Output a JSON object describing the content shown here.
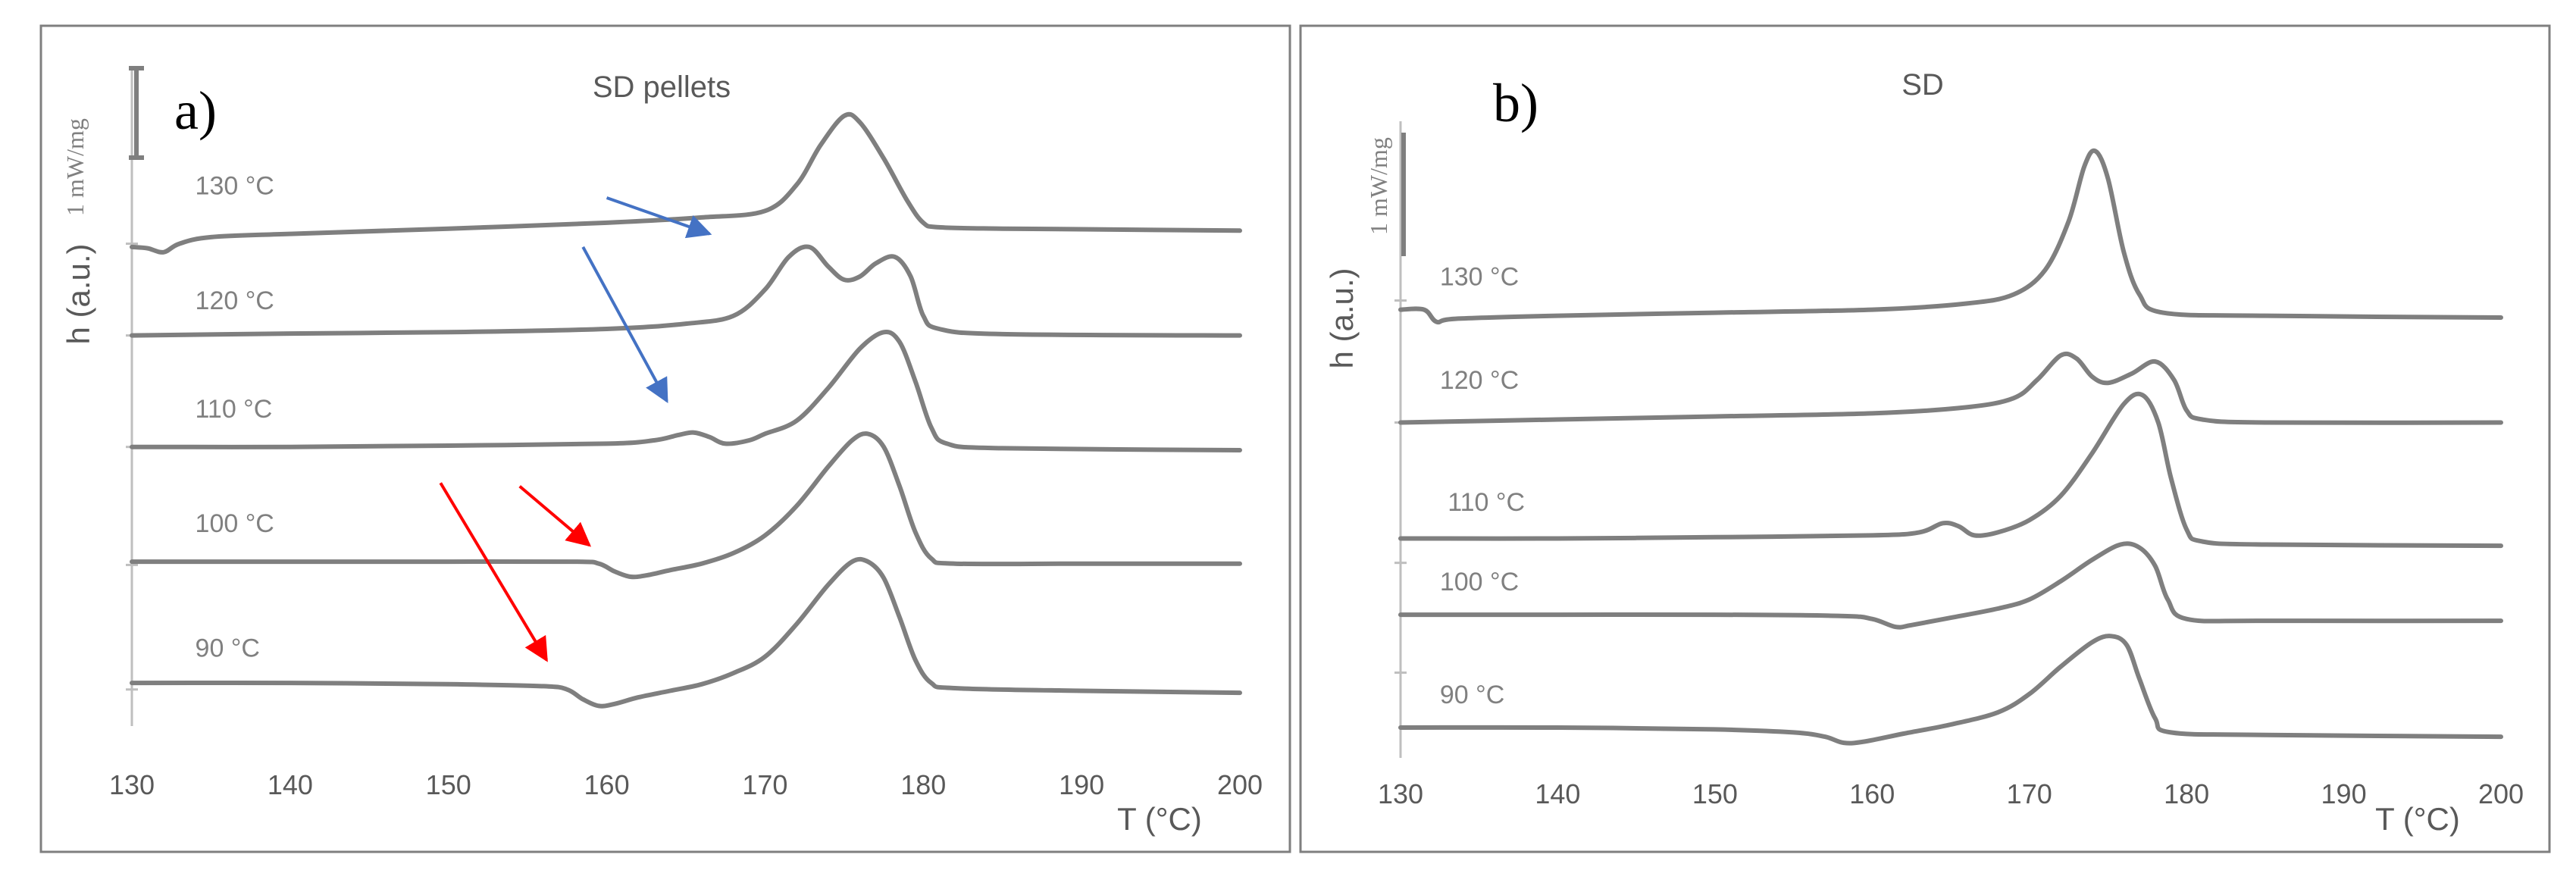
{
  "chart_data": [
    {
      "type": "line",
      "panel_label": "a)",
      "title": "SD pellets",
      "xlabel": "T (°C)",
      "ylabel": "h (a.u.)",
      "scale_bar_label": "1 mW/mg",
      "xlim": [
        130,
        200
      ],
      "xticks": [
        130,
        140,
        150,
        160,
        170,
        180,
        190,
        200
      ],
      "ylim": [
        0,
        10
      ],
      "series": [
        {
          "name": "130 °C",
          "label_x": 134,
          "label_y": 8.05,
          "points": [
            [
              130,
              7.25
            ],
            [
              131,
              7.23
            ],
            [
              132,
              7.17
            ],
            [
              133,
              7.3
            ],
            [
              135,
              7.4
            ],
            [
              140,
              7.45
            ],
            [
              150,
              7.53
            ],
            [
              160,
              7.62
            ],
            [
              166,
              7.7
            ],
            [
              170,
              7.8
            ],
            [
              172,
              8.2
            ],
            [
              173.5,
              8.8
            ],
            [
              175,
              9.25
            ],
            [
              176,
              9.15
            ],
            [
              177.5,
              8.6
            ],
            [
              179,
              7.95
            ],
            [
              180,
              7.62
            ],
            [
              181,
              7.55
            ],
            [
              185,
              7.53
            ],
            [
              190,
              7.52
            ],
            [
              200,
              7.5
            ]
          ]
        },
        {
          "name": "120 °C",
          "label_x": 134,
          "label_y": 6.3,
          "points": [
            [
              130,
              5.9
            ],
            [
              140,
              5.93
            ],
            [
              150,
              5.95
            ],
            [
              160,
              6.0
            ],
            [
              165,
              6.08
            ],
            [
              168,
              6.2
            ],
            [
              170,
              6.6
            ],
            [
              171.5,
              7.1
            ],
            [
              172.8,
              7.25
            ],
            [
              174,
              6.95
            ],
            [
              175,
              6.75
            ],
            [
              176,
              6.8
            ],
            [
              177,
              7.0
            ],
            [
              178.2,
              7.1
            ],
            [
              179.2,
              6.8
            ],
            [
              180,
              6.2
            ],
            [
              181,
              6.0
            ],
            [
              185,
              5.92
            ],
            [
              200,
              5.9
            ]
          ]
        },
        {
          "name": "110 °C",
          "label_x": 134,
          "label_y": 4.65,
          "points": [
            [
              130,
              4.2
            ],
            [
              140,
              4.2
            ],
            [
              150,
              4.22
            ],
            [
              160,
              4.25
            ],
            [
              163,
              4.3
            ],
            [
              164.5,
              4.38
            ],
            [
              165.5,
              4.42
            ],
            [
              166.5,
              4.35
            ],
            [
              167.5,
              4.25
            ],
            [
              169,
              4.3
            ],
            [
              170,
              4.4
            ],
            [
              172,
              4.6
            ],
            [
              174,
              5.1
            ],
            [
              176,
              5.7
            ],
            [
              177.5,
              5.95
            ],
            [
              178.5,
              5.8
            ],
            [
              179.5,
              5.2
            ],
            [
              180.5,
              4.5
            ],
            [
              181.5,
              4.25
            ],
            [
              185,
              4.18
            ],
            [
              200,
              4.15
            ]
          ]
        },
        {
          "name": "100 °C",
          "label_x": 134,
          "label_y": 2.9,
          "points": [
            [
              130,
              2.45
            ],
            [
              140,
              2.45
            ],
            [
              150,
              2.45
            ],
            [
              158,
              2.45
            ],
            [
              159.5,
              2.42
            ],
            [
              160.5,
              2.3
            ],
            [
              161.5,
              2.22
            ],
            [
              162.5,
              2.24
            ],
            [
              164,
              2.32
            ],
            [
              166,
              2.42
            ],
            [
              168,
              2.58
            ],
            [
              170,
              2.85
            ],
            [
              172,
              3.3
            ],
            [
              174,
              3.9
            ],
            [
              175.5,
              4.3
            ],
            [
              176.5,
              4.4
            ],
            [
              177.5,
              4.2
            ],
            [
              178.5,
              3.6
            ],
            [
              179.5,
              2.9
            ],
            [
              180.5,
              2.5
            ],
            [
              182,
              2.42
            ],
            [
              190,
              2.42
            ],
            [
              200,
              2.42
            ]
          ]
        },
        {
          "name": "90 °C",
          "label_x": 134,
          "label_y": 1.0,
          "points": [
            [
              130,
              0.6
            ],
            [
              140,
              0.6
            ],
            [
              150,
              0.58
            ],
            [
              156,
              0.55
            ],
            [
              157.5,
              0.5
            ],
            [
              158.5,
              0.35
            ],
            [
              159.5,
              0.25
            ],
            [
              160.5,
              0.28
            ],
            [
              162,
              0.38
            ],
            [
              164,
              0.48
            ],
            [
              166,
              0.58
            ],
            [
              168,
              0.75
            ],
            [
              170,
              1.0
            ],
            [
              172,
              1.5
            ],
            [
              174,
              2.1
            ],
            [
              175.5,
              2.45
            ],
            [
              176.5,
              2.45
            ],
            [
              177.5,
              2.2
            ],
            [
              178.5,
              1.6
            ],
            [
              179.5,
              0.95
            ],
            [
              180.5,
              0.6
            ],
            [
              182,
              0.52
            ],
            [
              190,
              0.48
            ],
            [
              200,
              0.45
            ]
          ]
        }
      ],
      "arrows": [
        {
          "color": "#4472c4",
          "from": [
            160,
            8.0
          ],
          "to": [
            166.5,
            7.45
          ]
        },
        {
          "color": "#4472c4",
          "from": [
            158.5,
            7.25
          ],
          "to": [
            163.8,
            4.9
          ]
        },
        {
          "color": "#ff0000",
          "from": [
            154.5,
            3.6
          ],
          "to": [
            158.9,
            2.7
          ]
        },
        {
          "color": "#ff0000",
          "from": [
            149.5,
            3.65
          ],
          "to": [
            156.2,
            0.95
          ]
        }
      ]
    },
    {
      "type": "line",
      "panel_label": "b)",
      "title": "SD",
      "xlabel": "T (°C)",
      "ylabel": "h (a.u.)",
      "scale_bar_label": "1 mW/mg",
      "xlim": [
        130,
        200
      ],
      "xticks": [
        130,
        140,
        150,
        160,
        170,
        180,
        190,
        200
      ],
      "ylim": [
        0,
        10
      ],
      "series": [
        {
          "name": "130 °C",
          "label_x": 132.5,
          "label_y": 7.25,
          "points": [
            [
              130,
              6.85
            ],
            [
              131.5,
              6.85
            ],
            [
              132.3,
              6.65
            ],
            [
              133.5,
              6.7
            ],
            [
              140,
              6.75
            ],
            [
              150,
              6.8
            ],
            [
              160,
              6.85
            ],
            [
              166,
              6.95
            ],
            [
              169,
              7.1
            ],
            [
              171,
              7.5
            ],
            [
              172.5,
              8.3
            ],
            [
              173.5,
              9.2
            ],
            [
              174.2,
              9.45
            ],
            [
              175,
              9.0
            ],
            [
              176,
              7.8
            ],
            [
              177,
              7.1
            ],
            [
              178.5,
              6.8
            ],
            [
              185,
              6.75
            ],
            [
              200,
              6.72
            ]
          ]
        },
        {
          "name": "120 °C",
          "label_x": 132.5,
          "label_y": 5.55,
          "points": [
            [
              130,
              5.0
            ],
            [
              140,
              5.05
            ],
            [
              150,
              5.1
            ],
            [
              160,
              5.15
            ],
            [
              166,
              5.25
            ],
            [
              169,
              5.4
            ],
            [
              170.5,
              5.7
            ],
            [
              172,
              6.1
            ],
            [
              173,
              6.05
            ],
            [
              174,
              5.75
            ],
            [
              175,
              5.65
            ],
            [
              176.5,
              5.8
            ],
            [
              178,
              6.0
            ],
            [
              179.2,
              5.7
            ],
            [
              180,
              5.2
            ],
            [
              181,
              5.05
            ],
            [
              185,
              5.0
            ],
            [
              200,
              5.0
            ]
          ]
        },
        {
          "name": "110 °C",
          "label_x": 133,
          "label_y": 3.55,
          "points": [
            [
              130,
              3.1
            ],
            [
              140,
              3.1
            ],
            [
              150,
              3.12
            ],
            [
              160,
              3.15
            ],
            [
              163,
              3.2
            ],
            [
              164.5,
              3.35
            ],
            [
              165.5,
              3.3
            ],
            [
              166.5,
              3.15
            ],
            [
              168,
              3.2
            ],
            [
              170,
              3.4
            ],
            [
              172,
              3.8
            ],
            [
              174,
              4.5
            ],
            [
              176,
              5.3
            ],
            [
              177.2,
              5.45
            ],
            [
              178.2,
              5.0
            ],
            [
              179,
              4.1
            ],
            [
              180,
              3.25
            ],
            [
              181,
              3.05
            ],
            [
              185,
              3.0
            ],
            [
              200,
              2.98
            ]
          ]
        },
        {
          "name": "100 °C",
          "label_x": 132.5,
          "label_y": 2.25,
          "points": [
            [
              130,
              1.85
            ],
            [
              140,
              1.85
            ],
            [
              150,
              1.85
            ],
            [
              158,
              1.83
            ],
            [
              160,
              1.78
            ],
            [
              161.5,
              1.65
            ],
            [
              162.5,
              1.68
            ],
            [
              165,
              1.8
            ],
            [
              168,
              1.95
            ],
            [
              170,
              2.1
            ],
            [
              172,
              2.4
            ],
            [
              174,
              2.75
            ],
            [
              175.8,
              3.0
            ],
            [
              177,
              2.95
            ],
            [
              178,
              2.65
            ],
            [
              178.8,
              2.1
            ],
            [
              180,
              1.78
            ],
            [
              185,
              1.75
            ],
            [
              200,
              1.75
            ]
          ]
        },
        {
          "name": "90 °C",
          "label_x": 132.5,
          "label_y": 0.4,
          "points": [
            [
              130,
              0.0
            ],
            [
              140,
              0.0
            ],
            [
              150,
              -0.03
            ],
            [
              155,
              -0.08
            ],
            [
              157,
              -0.15
            ],
            [
              158.2,
              -0.25
            ],
            [
              159.5,
              -0.23
            ],
            [
              162,
              -0.1
            ],
            [
              165,
              0.05
            ],
            [
              168,
              0.25
            ],
            [
              170,
              0.55
            ],
            [
              172,
              1.0
            ],
            [
              174,
              1.4
            ],
            [
              175.2,
              1.5
            ],
            [
              176.2,
              1.35
            ],
            [
              177,
              0.8
            ],
            [
              178,
              0.15
            ],
            [
              179,
              -0.08
            ],
            [
              185,
              -0.12
            ],
            [
              200,
              -0.15
            ]
          ]
        }
      ],
      "arrows": []
    }
  ]
}
